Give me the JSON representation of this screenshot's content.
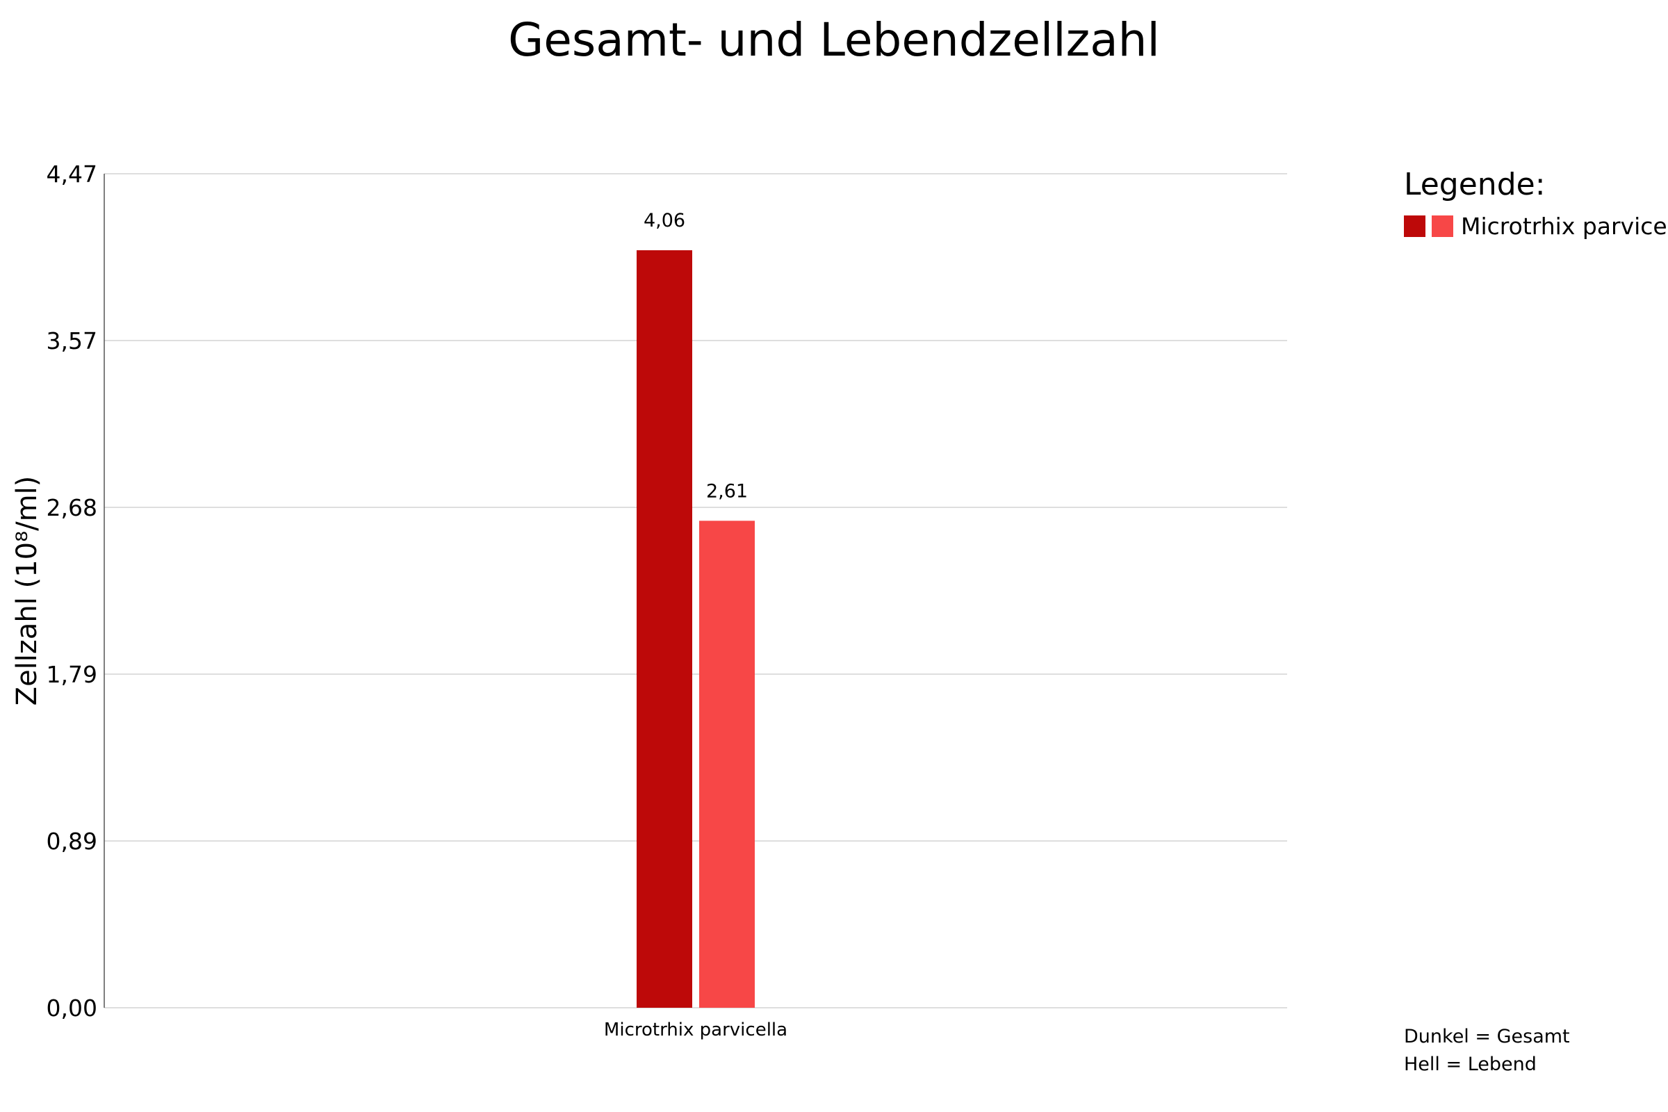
{
  "chart_data": {
    "type": "bar",
    "title": "Gesamt- und Lebendzellzahl",
    "ylabel": "Zellzahl (10⁸/ml)",
    "xlabel": "",
    "ylim": [
      0,
      4.47
    ],
    "yticks": [
      "0,00",
      "0,89",
      "1,79",
      "2,68",
      "3,57",
      "4,47"
    ],
    "ytick_values": [
      0,
      0.894,
      1.788,
      2.682,
      3.576,
      4.47
    ],
    "grid": true,
    "categories": [
      "Microtrhix parvicella"
    ],
    "series": [
      {
        "values": [
          4.06
        ],
        "labels": [
          "4,06"
        ],
        "color": "#bd0909"
      },
      {
        "values": [
          2.61
        ],
        "labels": [
          "2,61"
        ],
        "color": "#f74747"
      }
    ],
    "legend": {
      "title": "Legende:",
      "placement": "right",
      "entries": [
        {
          "label": "Microtrhix parvicell",
          "colors": [
            "#bd0909",
            "#f74747"
          ]
        }
      ],
      "notes": [
        "Dunkel = Gesamt",
        "Hell = Lebend"
      ]
    }
  }
}
